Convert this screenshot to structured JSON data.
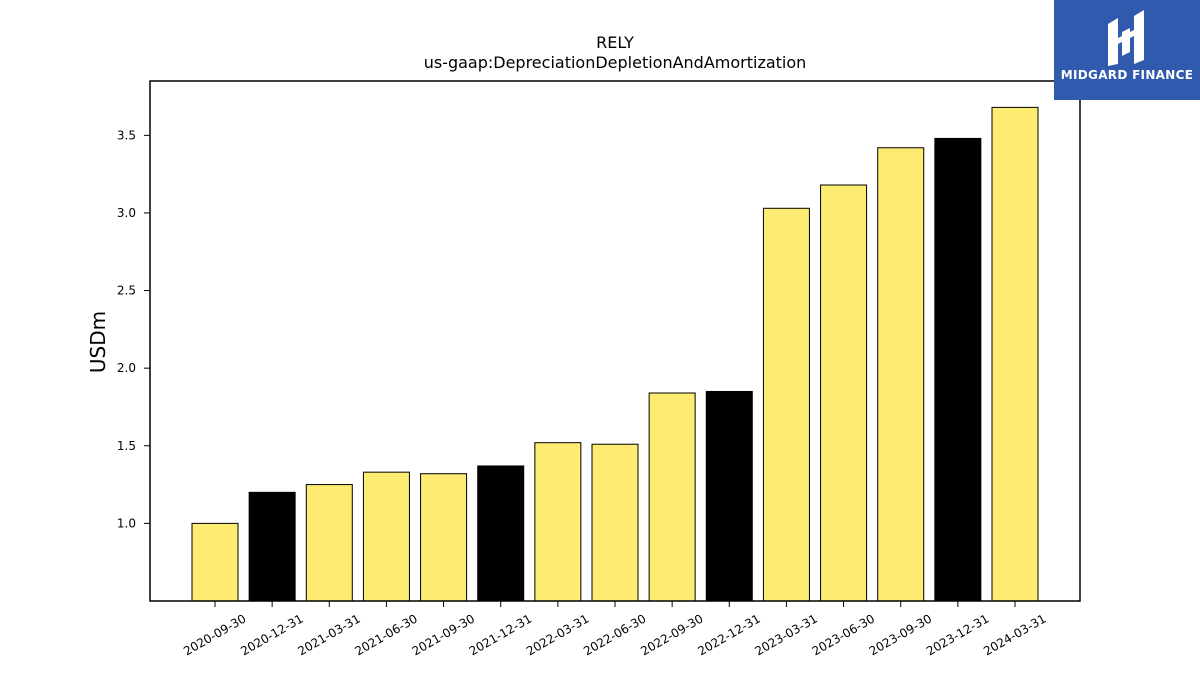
{
  "brand": {
    "name": "MIDGARD FINANCE",
    "bg_color": "#2f5aad"
  },
  "chart_data": {
    "type": "bar",
    "title": "RELY",
    "subtitle": "us-gaap:DepreciationDepletionAndAmortization",
    "xlabel": "",
    "ylabel": "USDm",
    "ylim": [
      0.5,
      3.85
    ],
    "yticks": [
      1.0,
      1.5,
      2.0,
      2.5,
      3.0,
      3.5
    ],
    "grid": false,
    "categories": [
      "2020-09-30",
      "2020-12-31",
      "2021-03-31",
      "2021-06-30",
      "2021-09-30",
      "2021-12-31",
      "2022-03-31",
      "2022-06-30",
      "2022-09-30",
      "2022-12-31",
      "2023-03-31",
      "2023-06-30",
      "2023-09-30",
      "2023-12-31",
      "2024-03-31"
    ],
    "values": [
      1.0,
      1.2,
      1.25,
      1.33,
      1.32,
      1.37,
      1.52,
      1.51,
      1.84,
      1.85,
      3.03,
      3.18,
      3.42,
      3.48,
      3.68
    ],
    "colors": {
      "quarter": "#fdeb72",
      "year_end": "#000000",
      "edge": "#000000"
    },
    "year_end_categories": [
      "2020-12-31",
      "2021-12-31",
      "2022-12-31",
      "2023-12-31"
    ]
  }
}
